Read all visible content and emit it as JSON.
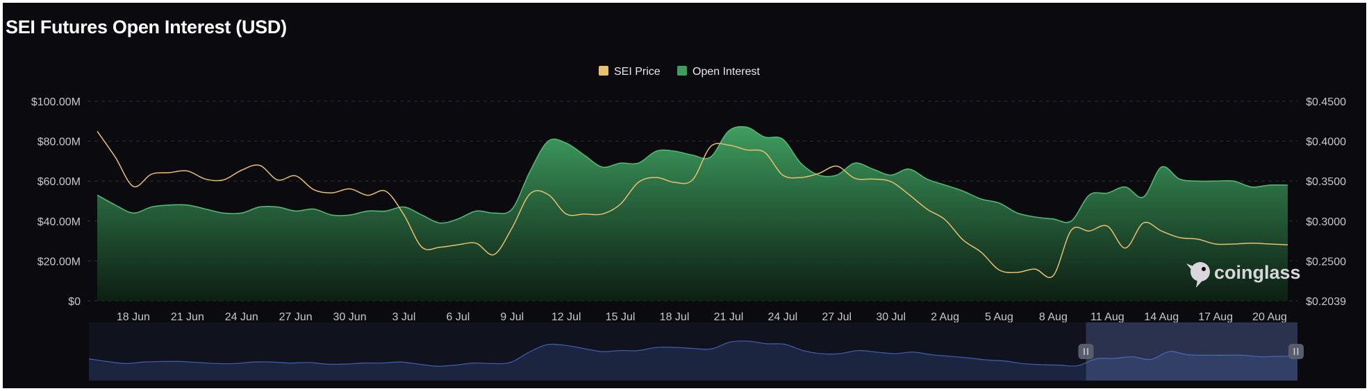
{
  "chart_data": {
    "type": "area",
    "title": "SEI Futures Open Interest (USD)",
    "legend_position": "top-center",
    "grid": true,
    "x": [
      "16 Jun",
      "17 Jun",
      "18 Jun",
      "19 Jun",
      "20 Jun",
      "21 Jun",
      "22 Jun",
      "23 Jun",
      "24 Jun",
      "25 Jun",
      "26 Jun",
      "27 Jun",
      "28 Jun",
      "29 Jun",
      "30 Jun",
      "1 Jul",
      "2 Jul",
      "3 Jul",
      "4 Jul",
      "5 Jul",
      "6 Jul",
      "7 Jul",
      "8 Jul",
      "9 Jul",
      "10 Jul",
      "11 Jul",
      "12 Jul",
      "13 Jul",
      "14 Jul",
      "15 Jul",
      "16 Jul",
      "17 Jul",
      "18 Jul",
      "19 Jul",
      "20 Jul",
      "21 Jul",
      "22 Jul",
      "23 Jul",
      "24 Jul",
      "25 Jul",
      "26 Jul",
      "27 Jul",
      "28 Jul",
      "29 Jul",
      "30 Jul",
      "31 Jul",
      "1 Aug",
      "2 Aug",
      "3 Aug",
      "4 Aug",
      "5 Aug",
      "6 Aug",
      "7 Aug",
      "8 Aug",
      "9 Aug",
      "10 Aug",
      "11 Aug",
      "12 Aug",
      "13 Aug",
      "14 Aug",
      "15 Aug",
      "16 Aug",
      "17 Aug",
      "18 Aug",
      "19 Aug",
      "20 Aug",
      "21 Aug"
    ],
    "x_ticks": [
      "18 Jun",
      "21 Jun",
      "24 Jun",
      "27 Jun",
      "30 Jun",
      "3 Jul",
      "6 Jul",
      "9 Jul",
      "12 Jul",
      "15 Jul",
      "18 Jul",
      "21 Jul",
      "24 Jul",
      "27 Jul",
      "30 Jul",
      "2 Aug",
      "5 Aug",
      "8 Aug",
      "11 Aug",
      "14 Aug",
      "17 Aug",
      "20 Aug"
    ],
    "y_left": {
      "min": 0,
      "max": 100,
      "ticks": [
        "$0",
        "$20.00M",
        "$40.00M",
        "$60.00M",
        "$80.00M",
        "$100.00M"
      ]
    },
    "y_right": {
      "min": 0.2039,
      "max": 0.45,
      "ticks": [
        "$0.2039",
        "$0.2500",
        "$0.3000",
        "$0.3500",
        "$0.4000",
        "$0.4500"
      ]
    },
    "series": [
      {
        "name": "Open Interest",
        "axis": "left",
        "unit": "USD millions",
        "color": "#3e9e5e",
        "values": [
          53,
          48,
          44,
          47,
          48,
          48,
          46,
          44,
          44,
          47,
          47,
          45,
          46,
          43,
          43,
          45,
          45,
          47,
          43,
          39,
          41,
          45,
          44,
          46,
          65,
          80,
          79,
          73,
          67,
          69,
          69,
          75,
          75,
          73,
          72,
          85,
          87,
          82,
          81,
          69,
          63,
          63,
          69,
          66,
          63,
          66,
          61,
          58,
          55,
          51,
          49,
          44,
          42,
          41,
          40,
          53,
          54,
          57,
          52,
          67,
          61,
          60,
          60,
          60,
          57,
          58,
          58
        ]
      },
      {
        "name": "SEI Price",
        "axis": "right",
        "unit": "USD",
        "color": "#e8c16c",
        "values": [
          0.413,
          0.381,
          0.345,
          0.36,
          0.362,
          0.364,
          0.354,
          0.353,
          0.365,
          0.371,
          0.353,
          0.358,
          0.341,
          0.337,
          0.342,
          0.334,
          0.339,
          0.31,
          0.27,
          0.27,
          0.273,
          0.275,
          0.261,
          0.294,
          0.336,
          0.335,
          0.311,
          0.311,
          0.311,
          0.323,
          0.35,
          0.356,
          0.35,
          0.353,
          0.394,
          0.396,
          0.39,
          0.387,
          0.359,
          0.356,
          0.361,
          0.37,
          0.355,
          0.354,
          0.351,
          0.335,
          0.317,
          0.304,
          0.279,
          0.264,
          0.242,
          0.239,
          0.243,
          0.235,
          0.291,
          0.29,
          0.296,
          0.269,
          0.3,
          0.29,
          0.282,
          0.28,
          0.274,
          0.274,
          0.275,
          0.274,
          0.273
        ]
      }
    ]
  },
  "watermark": {
    "label": "coinglass",
    "icon": "coinglass-logo-icon"
  },
  "navigator": {
    "selection_start_fraction": 0.825,
    "selection_end_fraction": 1.0,
    "handle_icon": "pause-grip-icon"
  }
}
